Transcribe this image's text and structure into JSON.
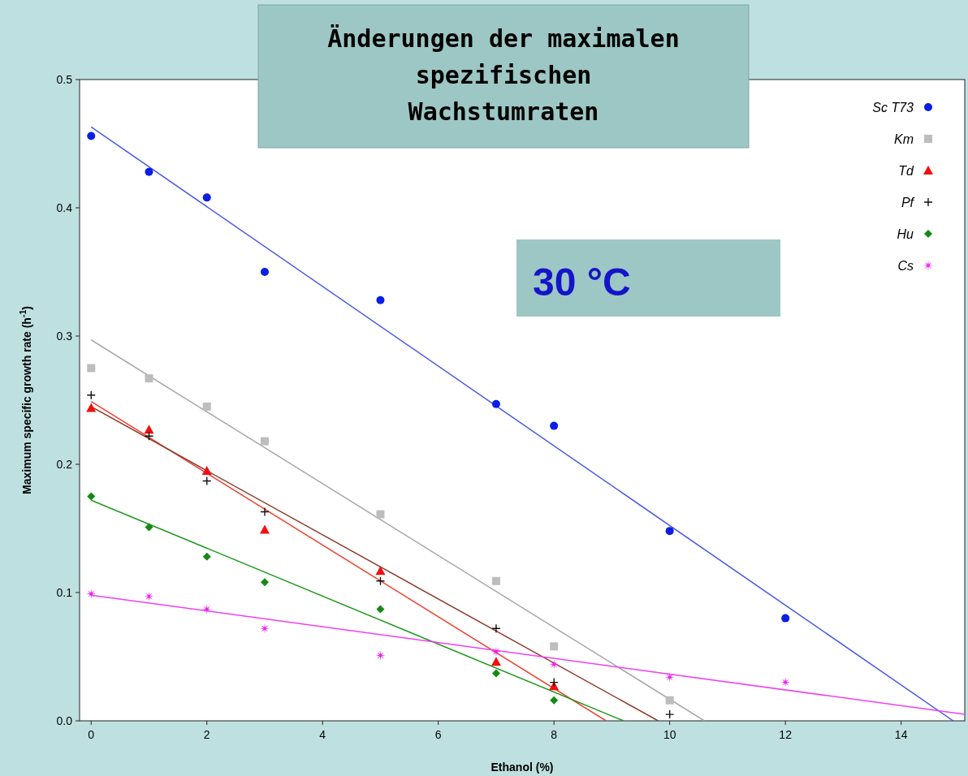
{
  "chart_data": {
    "type": "scatter",
    "title": "Änderungen der maximalen spezifischen Wachstumraten",
    "xlabel": "Ethanol (%)",
    "ylabel": "Maximum specific growth rate (h$^{-1}$)",
    "annotations": [
      "30 °C"
    ],
    "xlim": [
      -0.2,
      15.1
    ],
    "ylim": [
      0,
      0.5
    ],
    "xticks": [
      0,
      2,
      4,
      6,
      8,
      10,
      12,
      14
    ],
    "yticks": [
      {
        "value": 0,
        "label": "0.0"
      },
      0.1,
      0.2,
      0.3,
      0.4,
      0.5
    ],
    "legend": "top right",
    "series": [
      {
        "name": "Sc T73",
        "color": "#0a1ee6",
        "marker": "circle",
        "x": [
          0,
          1,
          2,
          3,
          5,
          7,
          8,
          10,
          12
        ],
        "values": [
          0.456,
          0.428,
          0.408,
          0.35,
          0.328,
          0.247,
          0.23,
          0.148,
          0.08
        ]
      },
      {
        "name": "Km",
        "color": "#bdbdbd",
        "marker": "square",
        "x": [
          0,
          1,
          2,
          3,
          5,
          7,
          8,
          10
        ],
        "values": [
          0.275,
          0.267,
          0.245,
          0.218,
          0.161,
          0.109,
          0.058,
          0.016
        ]
      },
      {
        "name": "Td",
        "color": "#f01010",
        "marker": "triangle",
        "x": [
          0,
          1,
          2,
          3,
          5,
          7,
          8
        ],
        "values": [
          0.244,
          0.227,
          0.195,
          0.149,
          0.117,
          0.046,
          0.027
        ]
      },
      {
        "name": "Pf",
        "color": "#111111",
        "marker": "cross",
        "x": [
          0,
          1,
          2,
          3,
          5,
          7,
          8,
          10
        ],
        "values": [
          0.254,
          0.222,
          0.187,
          0.163,
          0.109,
          0.072,
          0.03,
          0.005
        ]
      },
      {
        "name": "Hu",
        "color": "#138a13",
        "marker": "diamond",
        "x": [
          0,
          1,
          2,
          3,
          5,
          7,
          8
        ],
        "values": [
          0.175,
          0.151,
          0.128,
          0.108,
          0.087,
          0.037,
          0.016
        ]
      },
      {
        "name": "Cs",
        "color": "#f020f0",
        "marker": "star",
        "x": [
          0,
          1,
          2,
          3,
          5,
          7,
          8,
          10,
          12
        ],
        "values": [
          0.099,
          0.097,
          0.087,
          0.072,
          0.051,
          0.054,
          0.044,
          0.034,
          0.03
        ]
      },
      {
        "type": "line",
        "color": "#4a5ae8",
        "x": [
          0,
          14.9
        ],
        "values": [
          0.463,
          0
        ]
      },
      {
        "type": "line",
        "color": "#a8a8a8",
        "x": [
          0,
          10.6
        ],
        "values": [
          0.297,
          0
        ]
      },
      {
        "type": "line",
        "color": "#f04030",
        "x": [
          0,
          8.9
        ],
        "values": [
          0.249,
          0
        ]
      },
      {
        "type": "line",
        "color": "#8b3a2a",
        "x": [
          0,
          9.8
        ],
        "values": [
          0.245,
          0
        ]
      },
      {
        "type": "line",
        "color": "#1e9a1e",
        "x": [
          0,
          9.2
        ],
        "values": [
          0.172,
          0
        ]
      },
      {
        "type": "line",
        "color": "#f040f0",
        "x": [
          0,
          15.1
        ],
        "values": [
          0.098,
          0.005
        ]
      }
    ]
  }
}
